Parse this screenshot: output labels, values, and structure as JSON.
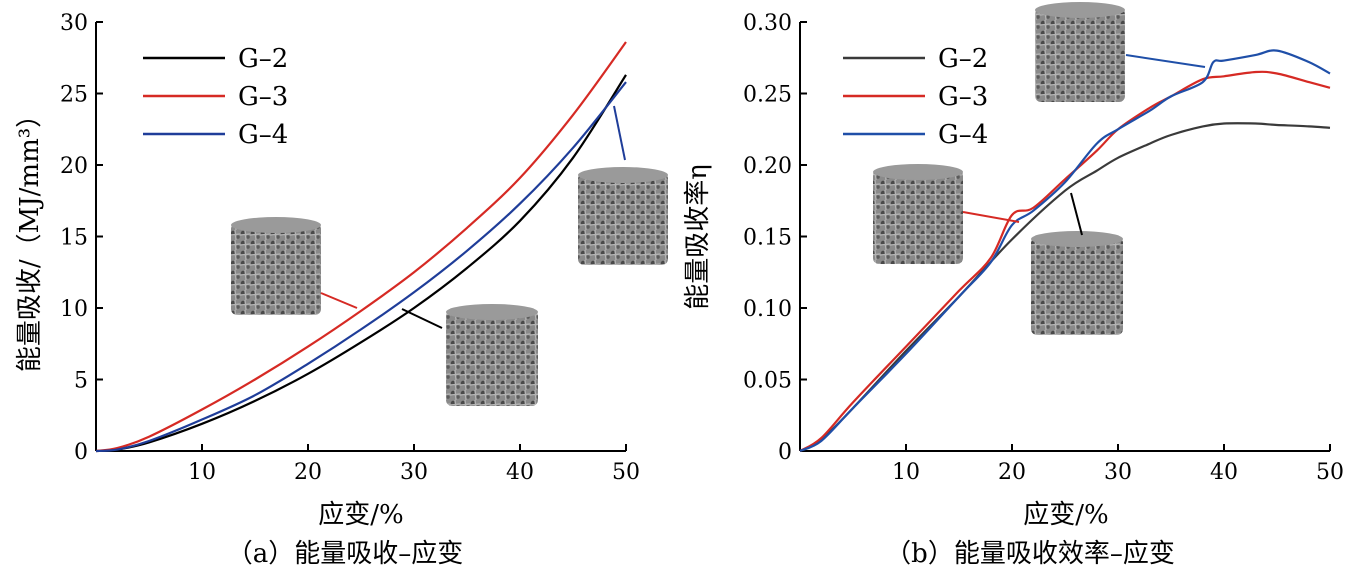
{
  "chart_data": [
    {
      "type": "line",
      "caption": "（a）能量吸收–应变",
      "xlabel": "应变/%",
      "ylabel": "能量吸收/（MJ/mm³）",
      "xlim": [
        0,
        50
      ],
      "ylim": [
        0,
        30
      ],
      "xticks": [
        10,
        20,
        30,
        40,
        50
      ],
      "yticks": [
        0,
        5,
        10,
        15,
        20,
        25,
        30
      ],
      "legend_position": "top-left",
      "series": [
        {
          "name": "G–2",
          "color": "#000000",
          "x": [
            0,
            2,
            5,
            10,
            15,
            20,
            25,
            30,
            35,
            40,
            45,
            50
          ],
          "y": [
            0,
            0.1,
            0.6,
            1.9,
            3.5,
            5.4,
            7.6,
            10.0,
            12.8,
            16.1,
            20.5,
            26.3
          ]
        },
        {
          "name": "G–3",
          "color": "#d62a24",
          "x": [
            0,
            2,
            5,
            10,
            15,
            20,
            25,
            30,
            35,
            40,
            45,
            50
          ],
          "y": [
            0,
            0.2,
            1.0,
            2.9,
            5.0,
            7.3,
            9.8,
            12.5,
            15.6,
            19.1,
            23.5,
            28.6
          ]
        },
        {
          "name": "G–4",
          "color": "#1f3d99",
          "x": [
            0,
            2,
            5,
            10,
            15,
            20,
            25,
            30,
            35,
            40,
            45,
            50
          ],
          "y": [
            0,
            0.1,
            0.7,
            2.2,
            3.9,
            6.1,
            8.5,
            11.1,
            14.0,
            17.3,
            21.2,
            25.8
          ]
        }
      ]
    },
    {
      "type": "line",
      "caption": "（b）能量吸收效率–应变",
      "xlabel": "应变/%",
      "ylabel": "能量吸收率η",
      "xlim": [
        0,
        50
      ],
      "ylim": [
        0,
        0.3
      ],
      "xticks": [
        10,
        20,
        30,
        40,
        50
      ],
      "yticks": [
        "0",
        "0.05",
        "0.10",
        "0.15",
        "0.20",
        "0.25",
        "0.30"
      ],
      "legend_position": "top-left",
      "series": [
        {
          "name": "G–2",
          "color": "#3a3a3a",
          "x": [
            0,
            2,
            5,
            10,
            15,
            20,
            25,
            28,
            30,
            33,
            35,
            38,
            40,
            43,
            45,
            48,
            50
          ],
          "y": [
            0,
            0.008,
            0.03,
            0.07,
            0.108,
            0.148,
            0.182,
            0.196,
            0.205,
            0.215,
            0.221,
            0.227,
            0.229,
            0.229,
            0.228,
            0.227,
            0.226
          ]
        },
        {
          "name": "G–3",
          "color": "#d62a24",
          "x": [
            0,
            2,
            5,
            10,
            15,
            18,
            20,
            22,
            25,
            28,
            30,
            33,
            35,
            38,
            40,
            43,
            45,
            48,
            50
          ],
          "y": [
            0,
            0.009,
            0.034,
            0.073,
            0.112,
            0.135,
            0.165,
            0.17,
            0.19,
            0.21,
            0.225,
            0.24,
            0.248,
            0.26,
            0.262,
            0.265,
            0.264,
            0.258,
            0.254
          ]
        },
        {
          "name": "G–4",
          "color": "#1f4fa8",
          "x": [
            0,
            2,
            5,
            10,
            15,
            18,
            20,
            22,
            25,
            28,
            30,
            33,
            35,
            38,
            39,
            40,
            43,
            45,
            48,
            50
          ],
          "y": [
            0,
            0.007,
            0.03,
            0.068,
            0.108,
            0.132,
            0.158,
            0.168,
            0.188,
            0.215,
            0.225,
            0.238,
            0.248,
            0.258,
            0.272,
            0.273,
            0.277,
            0.28,
            0.272,
            0.264
          ]
        }
      ]
    }
  ]
}
